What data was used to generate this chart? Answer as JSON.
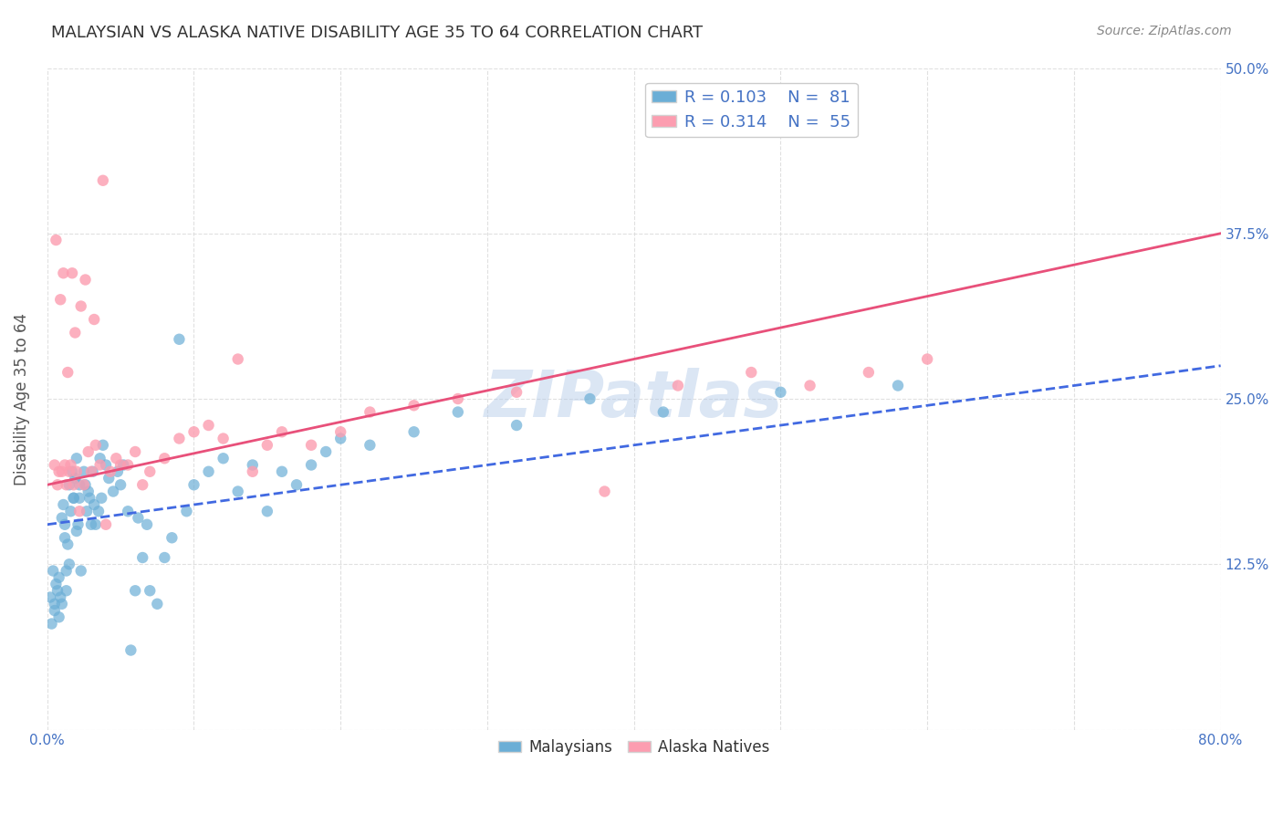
{
  "title": "MALAYSIAN VS ALASKA NATIVE DISABILITY AGE 35 TO 64 CORRELATION CHART",
  "source": "Source: ZipAtlas.com",
  "ylabel": "Disability Age 35 to 64",
  "xlim": [
    0.0,
    0.8
  ],
  "ylim": [
    0.0,
    0.5
  ],
  "ytick_positions": [
    0.0,
    0.125,
    0.25,
    0.375,
    0.5
  ],
  "ytick_labels": [
    "",
    "12.5%",
    "25.0%",
    "37.5%",
    "50.0%"
  ],
  "legend_r1": "R = 0.103",
  "legend_n1": "N =  81",
  "legend_r2": "R = 0.314",
  "legend_n2": "N =  55",
  "blue_color": "#6baed6",
  "pink_color": "#fc9db0",
  "trend_blue": "#4169E1",
  "trend_pink": "#e8507a",
  "watermark": "ZIPatlas",
  "blue_line_x": [
    0.0,
    0.8
  ],
  "blue_line_y": [
    0.155,
    0.275
  ],
  "pink_line_x": [
    0.0,
    0.8
  ],
  "pink_line_y": [
    0.185,
    0.375
  ],
  "malaysians_x": [
    0.002,
    0.003,
    0.004,
    0.005,
    0.005,
    0.006,
    0.007,
    0.008,
    0.008,
    0.009,
    0.01,
    0.01,
    0.011,
    0.012,
    0.012,
    0.013,
    0.013,
    0.014,
    0.015,
    0.015,
    0.016,
    0.017,
    0.018,
    0.018,
    0.019,
    0.02,
    0.02,
    0.021,
    0.022,
    0.022,
    0.023,
    0.025,
    0.026,
    0.027,
    0.028,
    0.029,
    0.03,
    0.031,
    0.032,
    0.033,
    0.035,
    0.036,
    0.037,
    0.038,
    0.04,
    0.042,
    0.045,
    0.048,
    0.05,
    0.052,
    0.055,
    0.057,
    0.06,
    0.062,
    0.065,
    0.068,
    0.07,
    0.075,
    0.08,
    0.085,
    0.09,
    0.095,
    0.1,
    0.11,
    0.12,
    0.13,
    0.14,
    0.15,
    0.16,
    0.17,
    0.18,
    0.19,
    0.2,
    0.22,
    0.25,
    0.28,
    0.32,
    0.37,
    0.42,
    0.5,
    0.58
  ],
  "malaysians_y": [
    0.1,
    0.08,
    0.12,
    0.09,
    0.095,
    0.11,
    0.105,
    0.085,
    0.115,
    0.1,
    0.095,
    0.16,
    0.17,
    0.145,
    0.155,
    0.105,
    0.12,
    0.14,
    0.125,
    0.185,
    0.165,
    0.195,
    0.175,
    0.175,
    0.19,
    0.205,
    0.15,
    0.155,
    0.175,
    0.185,
    0.12,
    0.195,
    0.185,
    0.165,
    0.18,
    0.175,
    0.155,
    0.195,
    0.17,
    0.155,
    0.165,
    0.205,
    0.175,
    0.215,
    0.2,
    0.19,
    0.18,
    0.195,
    0.185,
    0.2,
    0.165,
    0.06,
    0.105,
    0.16,
    0.13,
    0.155,
    0.105,
    0.095,
    0.13,
    0.145,
    0.295,
    0.165,
    0.185,
    0.195,
    0.205,
    0.18,
    0.2,
    0.165,
    0.195,
    0.185,
    0.2,
    0.21,
    0.22,
    0.215,
    0.225,
    0.24,
    0.23,
    0.25,
    0.24,
    0.255,
    0.26
  ],
  "alaska_x": [
    0.005,
    0.007,
    0.008,
    0.01,
    0.012,
    0.013,
    0.015,
    0.016,
    0.018,
    0.02,
    0.022,
    0.025,
    0.028,
    0.03,
    0.033,
    0.036,
    0.04,
    0.043,
    0.047,
    0.05,
    0.055,
    0.06,
    0.065,
    0.07,
    0.08,
    0.09,
    0.1,
    0.11,
    0.12,
    0.13,
    0.14,
    0.15,
    0.16,
    0.18,
    0.2,
    0.22,
    0.25,
    0.28,
    0.32,
    0.38,
    0.43,
    0.48,
    0.52,
    0.56,
    0.6,
    0.006,
    0.009,
    0.011,
    0.014,
    0.017,
    0.019,
    0.023,
    0.026,
    0.032,
    0.038
  ],
  "alaska_y": [
    0.2,
    0.185,
    0.195,
    0.195,
    0.2,
    0.185,
    0.195,
    0.2,
    0.185,
    0.195,
    0.165,
    0.185,
    0.21,
    0.195,
    0.215,
    0.2,
    0.155,
    0.195,
    0.205,
    0.2,
    0.2,
    0.21,
    0.185,
    0.195,
    0.205,
    0.22,
    0.225,
    0.23,
    0.22,
    0.28,
    0.195,
    0.215,
    0.225,
    0.215,
    0.225,
    0.24,
    0.245,
    0.25,
    0.255,
    0.18,
    0.26,
    0.27,
    0.26,
    0.27,
    0.28,
    0.37,
    0.325,
    0.345,
    0.27,
    0.345,
    0.3,
    0.32,
    0.34,
    0.31,
    0.415
  ],
  "background_color": "#ffffff",
  "grid_color": "#dddddd",
  "title_color": "#333333",
  "axis_label_color": "#555555",
  "tick_color": "#4472C4"
}
